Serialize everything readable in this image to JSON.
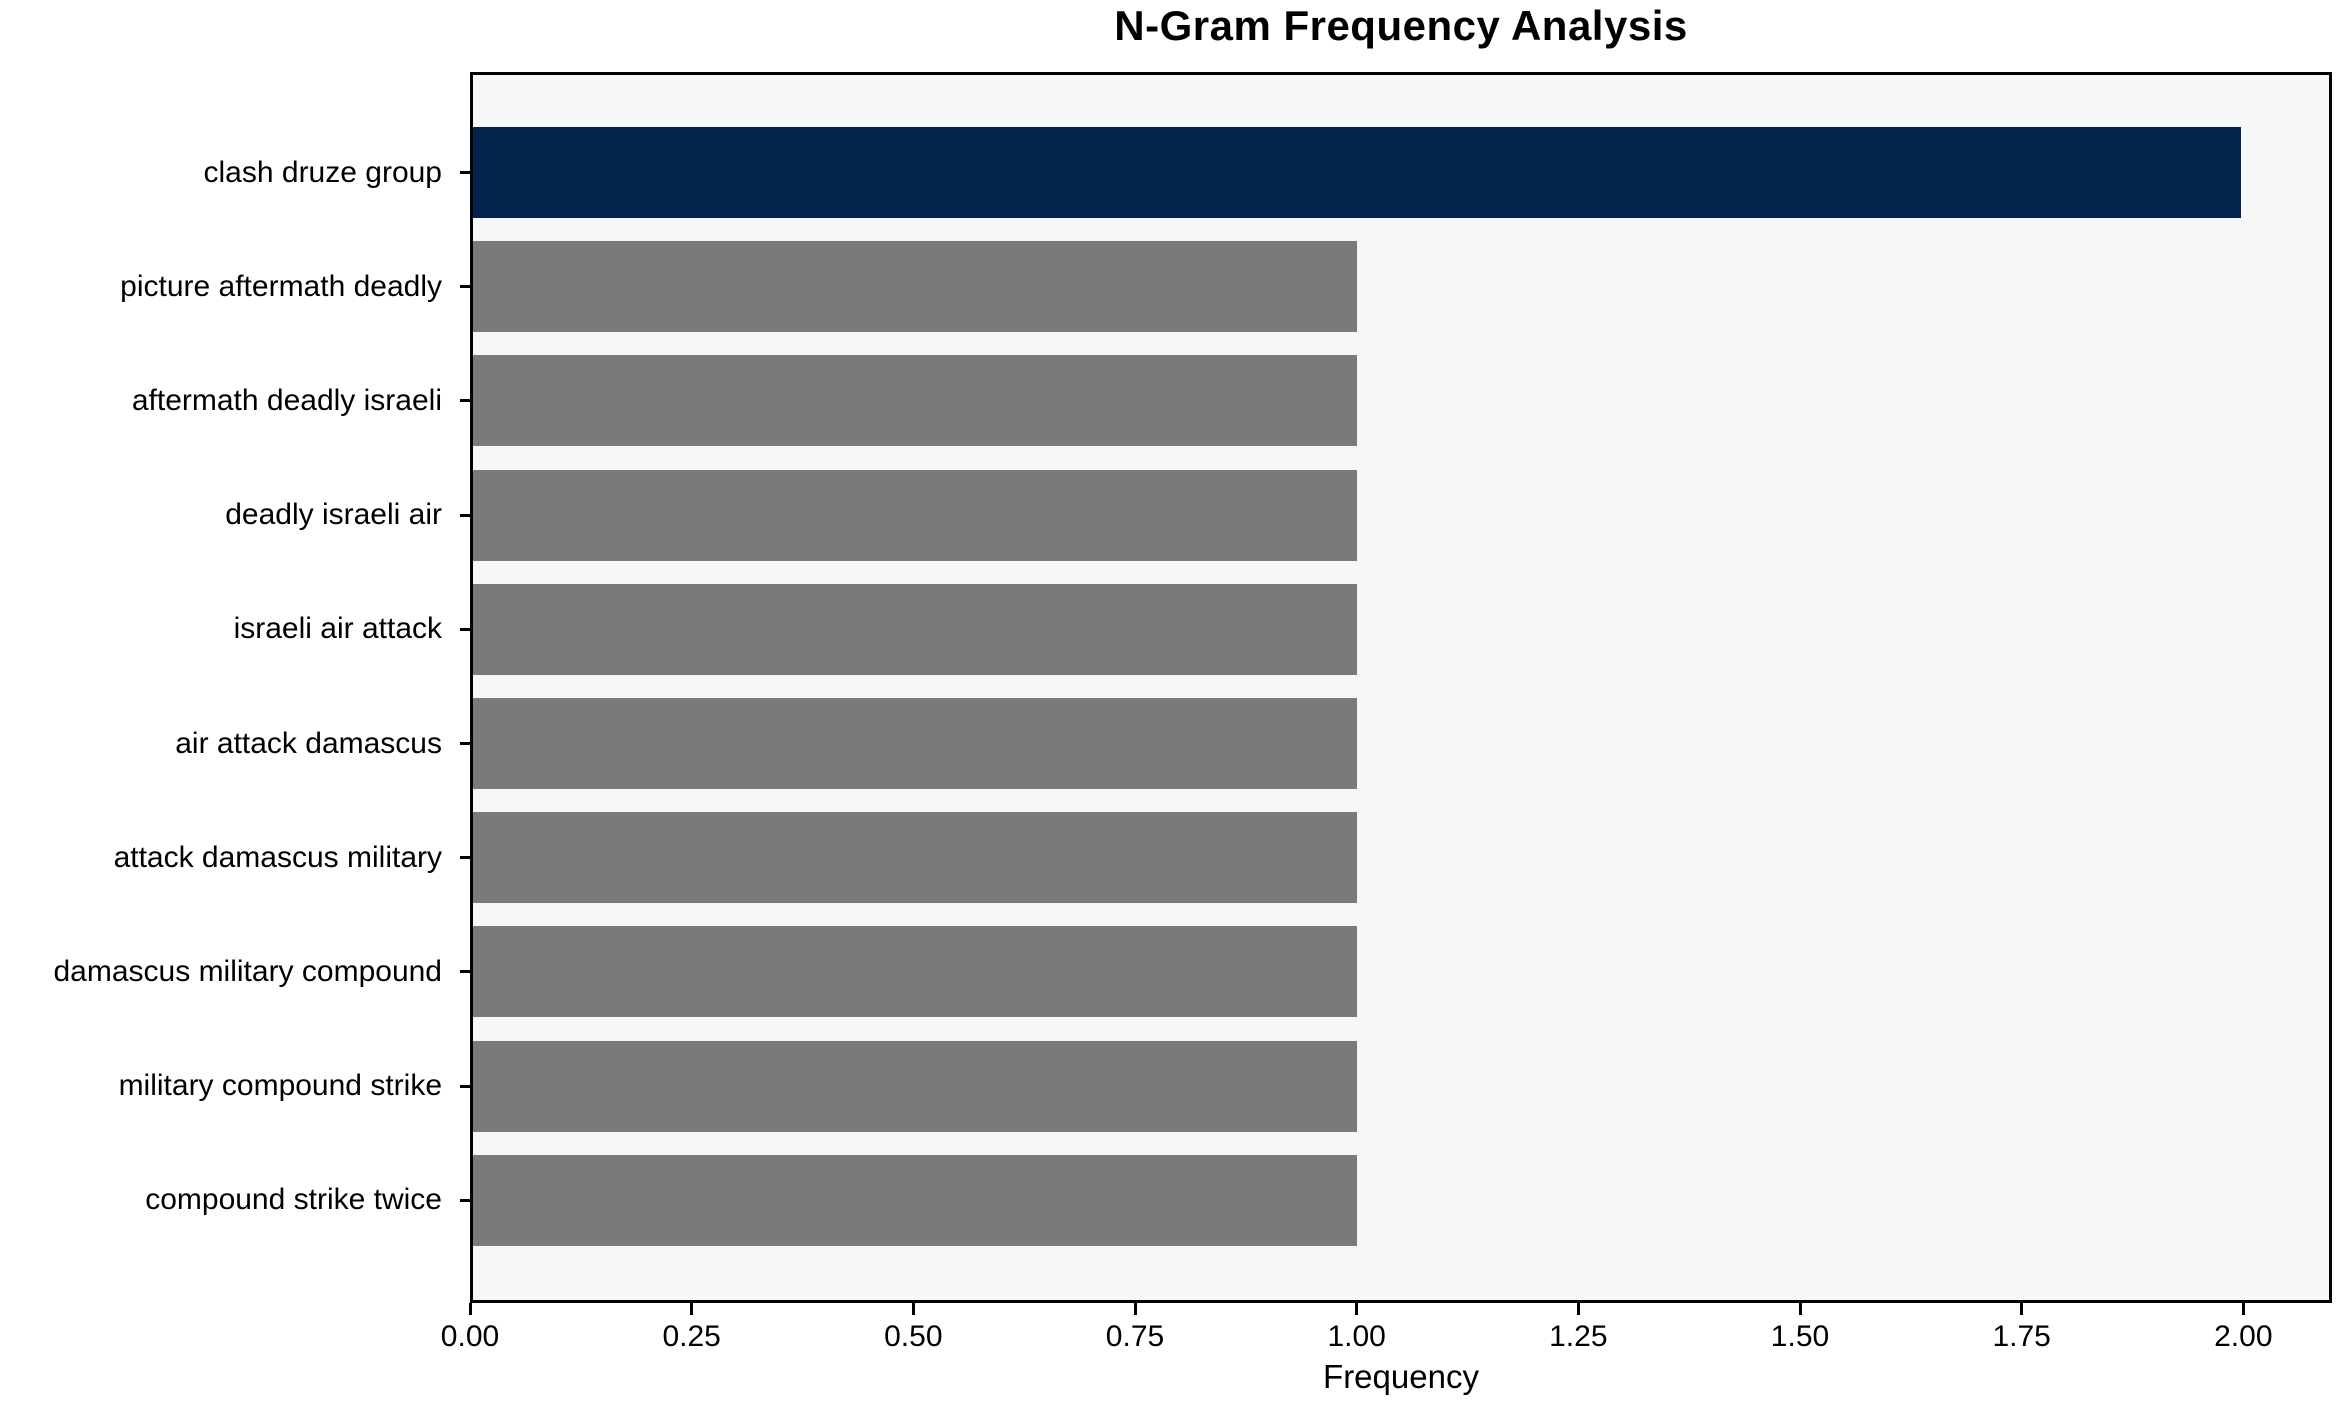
{
  "title": "N-Gram Frequency Analysis",
  "chart_data": {
    "type": "bar",
    "orientation": "horizontal",
    "title": "N-Gram Frequency Analysis",
    "xlabel": "Frequency",
    "ylabel": "",
    "categories": [
      "clash druze group",
      "picture aftermath deadly",
      "aftermath deadly israeli",
      "deadly israeli air",
      "israeli air attack",
      "air attack damascus",
      "attack damascus military",
      "damascus military compound",
      "military compound strike",
      "compound strike twice"
    ],
    "values": [
      2,
      1,
      1,
      1,
      1,
      1,
      1,
      1,
      1,
      1
    ],
    "bar_colors": [
      "#02234c",
      "#7c7a78",
      "#7c7a78",
      "#7c7a78",
      "#7c7a78",
      "#7c7a78",
      "#7c7a78",
      "#7c7a78",
      "#7c7a78",
      "#7c7a78"
    ],
    "xlim": [
      0,
      2.1
    ],
    "xticks": [
      "0.00",
      "0.25",
      "0.50",
      "0.75",
      "1.00",
      "1.25",
      "1.50",
      "1.75",
      "2.00"
    ],
    "xtick_values": [
      0,
      0.25,
      0.5,
      0.75,
      1.0,
      1.25,
      1.5,
      1.75,
      2.0
    ],
    "grid": false,
    "legend": null,
    "colors": {
      "highlight_bar": "#02234c",
      "default_bar": "#7c7a78",
      "plot_background": "#f7f7f7",
      "figure_background": "#ffffff",
      "axis_line": "#000000",
      "text": "#000000"
    }
  }
}
